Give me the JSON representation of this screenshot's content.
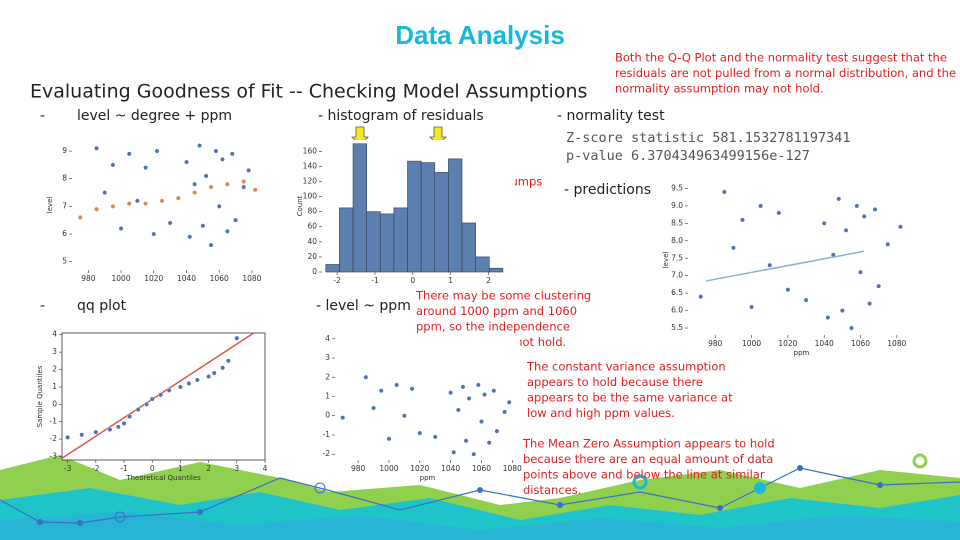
{
  "header": {
    "title": "Data Analysis",
    "subtitle": "Evaluating Goodness of Fit -- Checking Model Assumptions"
  },
  "sections": [
    {
      "bullet": "-",
      "heading": "level ~ degree + ppm"
    },
    {
      "heading": "- histogram of residuals"
    },
    {
      "heading": "- normality test",
      "lines": [
        "Z-score statistic 581.1532781197341",
        "p-value 6.370434963499156e-127"
      ]
    },
    {
      "heading": "- predictions"
    },
    {
      "bullet": "-",
      "heading": "qq plot"
    },
    {
      "heading": "- level ~ ppm"
    }
  ],
  "notes": [
    {
      "lines": [
        "Both the Q-Q Plot and the normality test suggest that the",
        "residuals are not pulled from a normal distribution, and the",
        "normality assumption may not hold."
      ]
    },
    {
      "lines": [
        "Two humps"
      ]
    },
    {
      "lines": [
        "Two humps"
      ]
    },
    {
      "lines": [
        "There may be some clustering",
        "around 1000 ppm and 1060",
        "ppm, so the independence",
        "assumption may not hold."
      ]
    },
    {
      "lines": [
        "The constant variance assumption",
        "appears to hold because there",
        "appears to be the same variance at",
        "low and high ppm values."
      ]
    },
    {
      "lines": [
        "The Mean Zero Assumption appears to hold",
        "because there are an equal amount of data",
        "points above and below the line at similar",
        "distances."
      ]
    }
  ],
  "chart_data": [
    {
      "type": "scatter",
      "ylabel": "level",
      "xlim": [
        970,
        1088
      ],
      "ylim": [
        4.7,
        9.4
      ],
      "xticks": [
        980,
        1000,
        1020,
        1040,
        1060,
        1080
      ],
      "yticks": [
        5,
        6,
        7,
        8,
        9
      ],
      "series": [
        {
          "color": "#4c72b0",
          "x": [
            985,
            990,
            995,
            1000,
            1005,
            1010,
            1015,
            1020,
            1022,
            1030,
            1040,
            1042,
            1045,
            1048,
            1050,
            1052,
            1055,
            1058,
            1060,
            1062,
            1065,
            1068,
            1070,
            1075,
            1078
          ],
          "y": [
            9.1,
            7.5,
            8.5,
            6.2,
            8.9,
            7.2,
            8.4,
            6.0,
            9.0,
            6.4,
            8.6,
            5.9,
            7.8,
            9.2,
            6.3,
            8.1,
            5.6,
            9.0,
            7.0,
            8.7,
            6.1,
            8.9,
            6.5,
            7.7,
            8.3
          ]
        },
        {
          "color": "#dd8452",
          "x": [
            975,
            985,
            995,
            1005,
            1015,
            1025,
            1035,
            1045,
            1055,
            1065,
            1075,
            1082
          ],
          "y": [
            6.6,
            6.9,
            7.0,
            7.1,
            7.1,
            7.2,
            7.3,
            7.5,
            7.7,
            7.8,
            7.9,
            7.6
          ]
        }
      ]
    },
    {
      "type": "histogram",
      "ylabel": "Count",
      "xlim": [
        -2.4,
        2.7
      ],
      "ylim": [
        0,
        175
      ],
      "xticks": [
        -2,
        -1,
        0,
        1,
        2
      ],
      "yticks": [
        0,
        20,
        40,
        60,
        80,
        100,
        120,
        140,
        160
      ],
      "color": "#5b7fae",
      "bins": [
        -2.3,
        -1.94,
        -1.58,
        -1.22,
        -0.86,
        -0.5,
        -0.14,
        0.22,
        0.58,
        0.94,
        1.3,
        1.66,
        2.02,
        2.38
      ],
      "counts": [
        10,
        85,
        170,
        80,
        77,
        85,
        147,
        145,
        132,
        150,
        65,
        20,
        5
      ]
    },
    {
      "type": "scatter",
      "xlabel": "ppm",
      "ylabel": "level",
      "xlim": [
        965,
        1090
      ],
      "ylim": [
        5.3,
        9.6
      ],
      "xticks": [
        980,
        1000,
        1020,
        1040,
        1060,
        1080
      ],
      "yticks": [
        {
          "value": 5.5,
          "label": "5.5"
        },
        {
          "value": 6,
          "label": "6.0"
        },
        {
          "value": 6.5,
          "label": "6.5"
        },
        {
          "value": 7,
          "label": "7.0"
        },
        {
          "value": 7.5,
          "label": "7.5"
        },
        {
          "value": 8,
          "label": "8.0"
        },
        {
          "value": 8.5,
          "label": "8.5"
        },
        {
          "value": 9,
          "label": "9.0"
        },
        {
          "value": 9.5,
          "label": "9.5"
        }
      ],
      "series": [
        {
          "color": "#4c72b0",
          "x": [
            972,
            985,
            990,
            995,
            1000,
            1005,
            1010,
            1015,
            1020,
            1030,
            1040,
            1042,
            1045,
            1048,
            1050,
            1052,
            1055,
            1058,
            1060,
            1062,
            1065,
            1068,
            1070,
            1075,
            1082
          ],
          "y": [
            6.4,
            9.4,
            7.8,
            8.6,
            6.1,
            9.0,
            7.3,
            8.8,
            6.6,
            6.3,
            8.5,
            5.8,
            7.6,
            9.2,
            6.0,
            8.3,
            5.5,
            9.0,
            7.1,
            8.7,
            6.2,
            8.9,
            6.7,
            7.9,
            8.4
          ]
        },
        {
          "color": "#8fb0cc",
          "style": "line",
          "x": [
            975,
            1062
          ],
          "y": [
            6.85,
            7.7
          ]
        }
      ]
    },
    {
      "type": "scatter",
      "xlabel": "Theoretical Quantiles",
      "ylabel": "Sample Quantiles",
      "xlim": [
        -3.2,
        4
      ],
      "ylim": [
        -3.2,
        4.1
      ],
      "xticks": [
        -3,
        -2,
        -1,
        0,
        1,
        2,
        3,
        4
      ],
      "yticks": [
        -3,
        -2,
        -1,
        0,
        1,
        2,
        3,
        4
      ],
      "series": [
        {
          "color": "#e0564a",
          "style": "line",
          "x": [
            -3.2,
            3.6
          ],
          "y": [
            -3.1,
            4.1
          ]
        },
        {
          "color": "#4c72b0",
          "x": [
            -3,
            -2.5,
            -2,
            -1.5,
            -1.2,
            -1,
            -0.8,
            -0.5,
            -0.2,
            0,
            0.3,
            0.6,
            1,
            1.3,
            1.6,
            2,
            2.2,
            2.5,
            2.7,
            3
          ],
          "y": [
            -1.9,
            -1.75,
            -1.6,
            -1.45,
            -1.3,
            -1.1,
            -0.7,
            -0.3,
            0,
            0.3,
            0.55,
            0.8,
            1.0,
            1.2,
            1.4,
            1.6,
            1.8,
            2.1,
            2.5,
            3.8
          ]
        }
      ]
    },
    {
      "type": "scatter",
      "xlabel": "ppm",
      "xlim": [
        965,
        1085
      ],
      "ylim": [
        -2.3,
        4.3
      ],
      "xticks": [
        980,
        1000,
        1020,
        1040,
        1060,
        1080
      ],
      "yticks": [
        -2,
        -1,
        0,
        1,
        2,
        3,
        4
      ],
      "series": [
        {
          "color": "#4c72b0",
          "x": [
            970,
            985,
            990,
            995,
            1000,
            1005,
            1010,
            1015,
            1020,
            1030,
            1040,
            1042,
            1045,
            1048,
            1050,
            1052,
            1055,
            1058,
            1060,
            1062,
            1065,
            1068,
            1070,
            1075,
            1078
          ],
          "y": [
            -0.1,
            2.0,
            0.4,
            1.3,
            -1.2,
            1.6,
            0.0,
            1.4,
            -0.9,
            -1.1,
            1.2,
            -1.9,
            0.3,
            1.5,
            -1.3,
            0.9,
            -2.0,
            1.6,
            -0.3,
            1.1,
            -1.4,
            1.3,
            -0.8,
            0.2,
            0.7
          ]
        }
      ]
    }
  ]
}
